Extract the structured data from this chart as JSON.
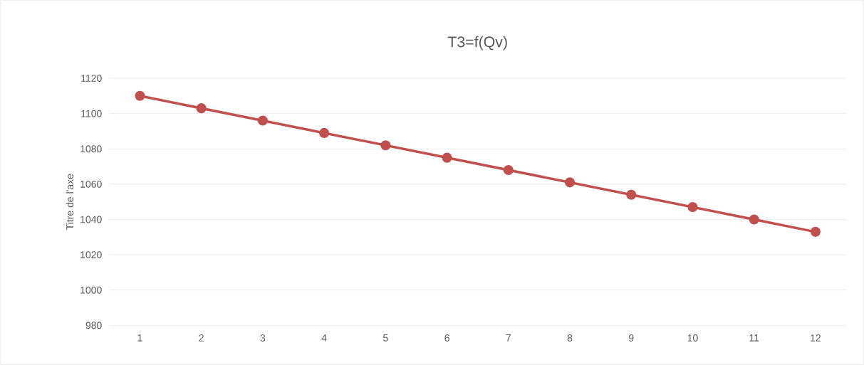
{
  "chart_data": {
    "type": "line",
    "title": "T3=f(Qv)",
    "ylabel": "Titre de l'axe",
    "categories": [
      "1",
      "2",
      "3",
      "4",
      "5",
      "6",
      "7",
      "8",
      "9",
      "10",
      "11",
      "12"
    ],
    "series": [
      {
        "color": "#c0504d",
        "values": [
          1110,
          1103,
          1096,
          1089,
          1082,
          1075,
          1068,
          1061,
          1054,
          1047,
          1040,
          1033
        ]
      }
    ],
    "ylim": [
      980,
      1120
    ],
    "yticks": [
      980,
      1000,
      1020,
      1040,
      1060,
      1080,
      1100,
      1120
    ],
    "grid": "y",
    "marker": "circle",
    "line_style": "solid"
  }
}
